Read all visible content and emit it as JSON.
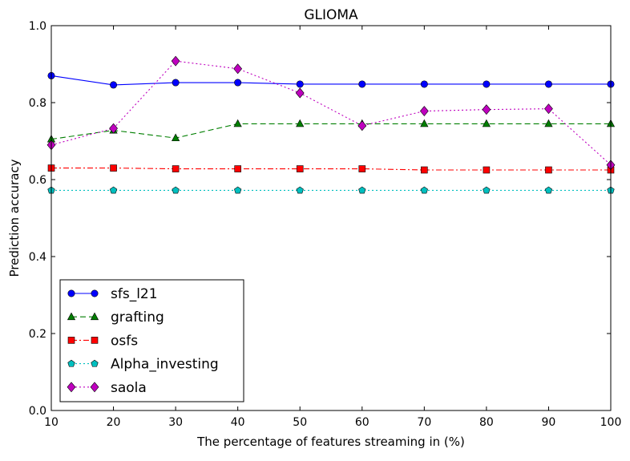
{
  "chart_data": {
    "type": "line",
    "title": "GLIOMA",
    "xlabel": "The percentage of features streaming in (%)",
    "ylabel": "Prediction accuracy",
    "x": [
      10,
      20,
      30,
      40,
      50,
      60,
      70,
      80,
      90,
      100
    ],
    "xlim": [
      10,
      100
    ],
    "ylim": [
      0.0,
      1.0
    ],
    "xticks": [
      "10",
      "20",
      "30",
      "40",
      "50",
      "60",
      "70",
      "80",
      "90",
      "100"
    ],
    "yticks": [
      "0.0",
      "0.2",
      "0.4",
      "0.6",
      "0.8",
      "1.0"
    ],
    "grid": false,
    "legend_position": "lower-left",
    "series": [
      {
        "name": "sfs_l21",
        "color": "#0000ff",
        "marker": "circle",
        "linestyle": "solid",
        "values": [
          0.87,
          0.846,
          0.852,
          0.852,
          0.848,
          0.848,
          0.848,
          0.848,
          0.848,
          0.848
        ]
      },
      {
        "name": "grafting",
        "color": "#007f00",
        "marker": "triangle",
        "linestyle": "dashed",
        "values": [
          0.705,
          0.728,
          0.708,
          0.745,
          0.745,
          0.745,
          0.745,
          0.745,
          0.745,
          0.745
        ]
      },
      {
        "name": "osfs",
        "color": "#ff0000",
        "marker": "square",
        "linestyle": "dashdot",
        "values": [
          0.63,
          0.63,
          0.628,
          0.628,
          0.628,
          0.628,
          0.625,
          0.625,
          0.625,
          0.625
        ]
      },
      {
        "name": "Alpha_investing",
        "color": "#00bfbf",
        "marker": "pentagon",
        "linestyle": "dotted",
        "values": [
          0.572,
          0.572,
          0.572,
          0.572,
          0.572,
          0.572,
          0.572,
          0.572,
          0.572,
          0.572
        ]
      },
      {
        "name": "saola",
        "color": "#bf00bf",
        "marker": "diamond",
        "linestyle": "dotted",
        "values": [
          0.69,
          0.733,
          0.908,
          0.888,
          0.825,
          0.74,
          0.778,
          0.782,
          0.784,
          0.638
        ]
      }
    ]
  }
}
